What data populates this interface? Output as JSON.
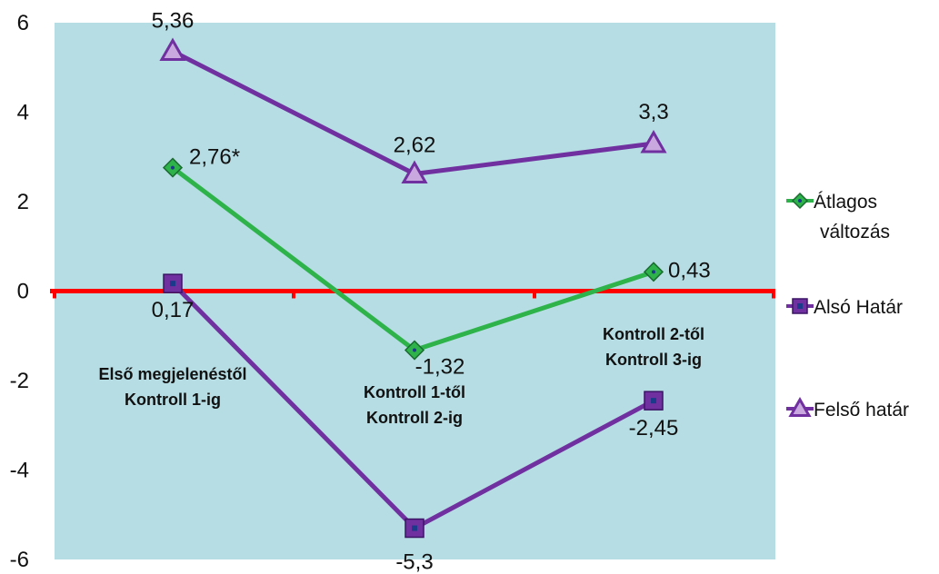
{
  "chart_data": {
    "type": "line",
    "categories": [
      "Első megjelenéstől Kontroll 1-ig",
      "Kontroll 1-től Kontroll 2-ig",
      "Kontroll 2-től Kontroll 3-ig"
    ],
    "category_lines": [
      [
        "Első megjelenéstől",
        "Kontroll 1-ig"
      ],
      [
        "Kontroll 1-től",
        "Kontroll 2-ig"
      ],
      [
        "Kontroll 2-től",
        "Kontroll 3-ig"
      ]
    ],
    "series": [
      {
        "name": "Átlagos változás",
        "legend_lines": [
          "Átlagos",
          "változás"
        ],
        "values": [
          2.76,
          -1.32,
          0.43
        ],
        "labels": [
          "2,76*",
          "-1,32",
          "0,43"
        ],
        "color": "#2db34a",
        "marker": "diamond"
      },
      {
        "name": "Alsó Határ",
        "legend_lines": [
          "Alsó Határ"
        ],
        "values": [
          0.17,
          -5.3,
          -2.45
        ],
        "labels": [
          "0,17",
          "-5,3",
          "-2,45"
        ],
        "color": "#7030a0",
        "marker": "square"
      },
      {
        "name": "Felső határ",
        "legend_lines": [
          "Felső határ"
        ],
        "values": [
          5.36,
          2.62,
          3.3
        ],
        "labels": [
          "5,36",
          "2,62",
          "3,3"
        ],
        "color": "#7030a0",
        "marker": "triangle"
      }
    ],
    "ylim": [
      -6,
      6
    ],
    "yticks": [
      6,
      4,
      2,
      0,
      -2,
      -4,
      -6
    ],
    "ytick_labels": [
      "6",
      "4",
      "2",
      "0",
      "-2",
      "-4",
      "-6"
    ],
    "plot_background": "#b6dde3",
    "zero_line_color": "#ff0000",
    "grid": false,
    "legend_position": "right",
    "title": "",
    "xlabel": "",
    "ylabel": ""
  }
}
